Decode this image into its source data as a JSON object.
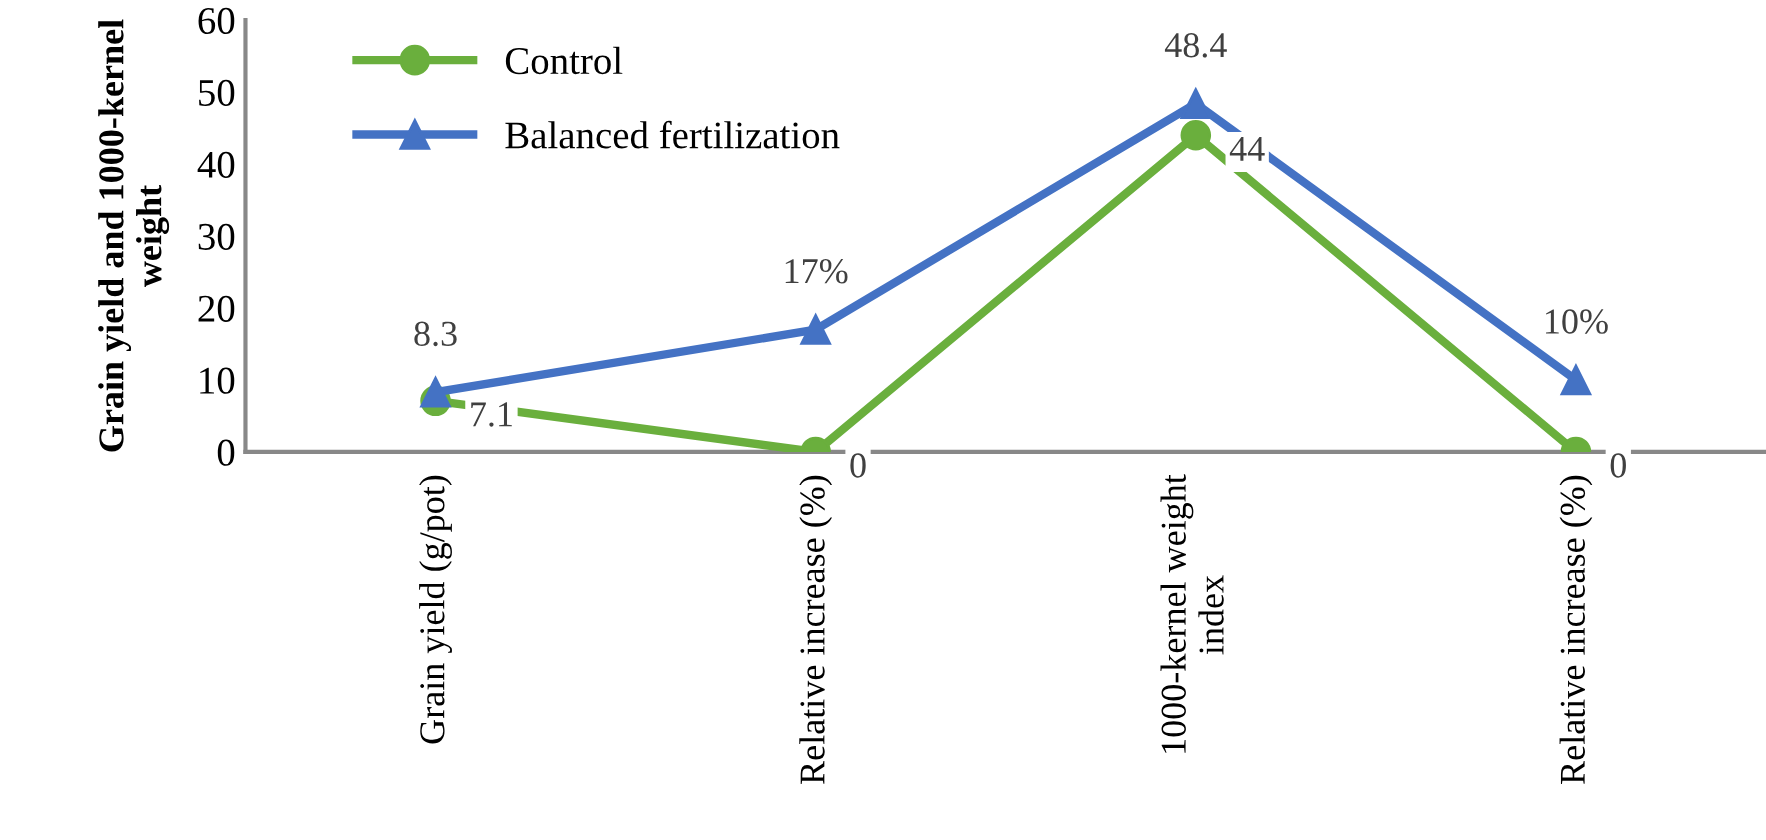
{
  "chart_data": {
    "type": "line",
    "ylabel": "Grain yield and 1000-kernel\nweight",
    "categories": [
      "Grain yield (g/pot)",
      "Relative increase (%)",
      "1000-kernel weight\nindex",
      "Relative increase (%)"
    ],
    "series": [
      {
        "name": "Control",
        "color": "#6aaf3d",
        "marker": "circle",
        "values": [
          7.1,
          0,
          44,
          0
        ],
        "value_labels": [
          "7.1",
          "0",
          "44",
          "0"
        ]
      },
      {
        "name": "Balanced fertilization",
        "color": "#4472c4",
        "marker": "triangle",
        "values": [
          8.3,
          17,
          48.4,
          10
        ],
        "value_labels": [
          "8.3",
          "17%",
          "48.4",
          "10%"
        ]
      }
    ],
    "ylim": [
      0,
      60
    ],
    "yticks": [
      0,
      10,
      20,
      30,
      40,
      50,
      60
    ],
    "grid": false,
    "legend": "top left",
    "line_style": "solid"
  }
}
